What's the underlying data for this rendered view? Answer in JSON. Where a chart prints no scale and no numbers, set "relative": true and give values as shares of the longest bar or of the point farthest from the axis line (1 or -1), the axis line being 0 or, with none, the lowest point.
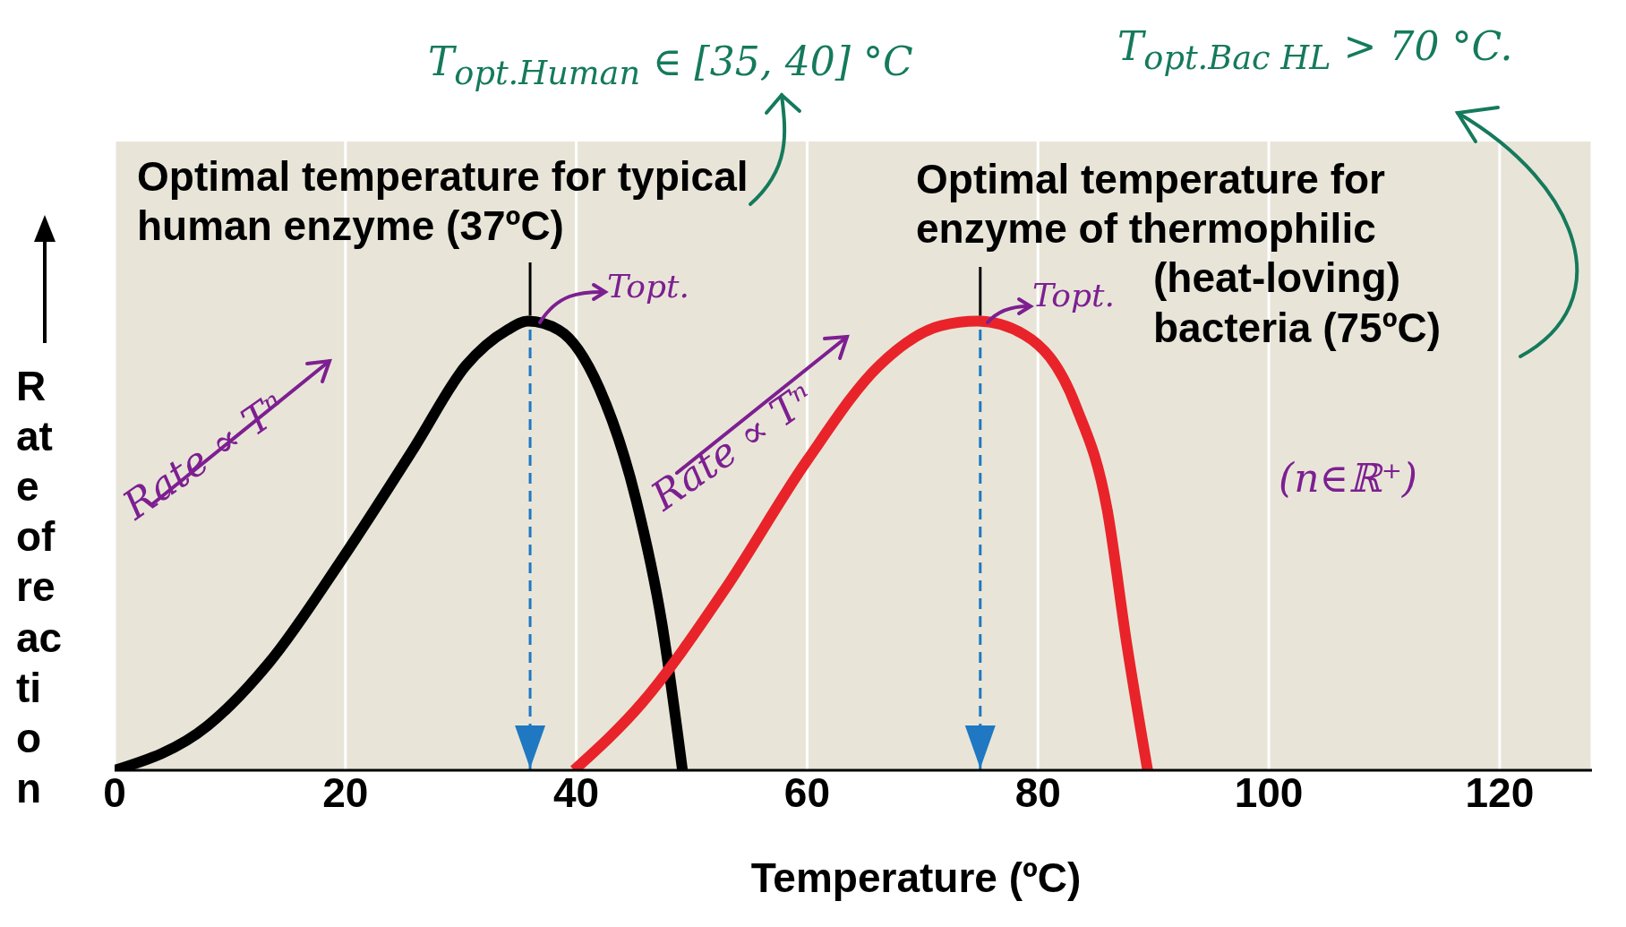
{
  "chart_data": {
    "type": "line",
    "relative": true,
    "xlabel": "Temperature (ºC)",
    "ylabel": "Rate of reaction",
    "xlim": [
      0,
      128
    ],
    "xticks": [
      0,
      20,
      40,
      60,
      80,
      100,
      120
    ],
    "grid": "x",
    "marker": "none",
    "line_style": "solid",
    "series": [
      {
        "color": "#000000",
        "x": [
          0,
          8.1,
          13.4,
          19.7,
          26,
          30.4,
          34,
          35.8,
          38.5,
          42,
          45.2,
          47.4,
          49.2
        ],
        "values": [
          0,
          0.1,
          0.24,
          0.47,
          0.72,
          0.9,
          0.98,
          1,
          0.98,
          0.85,
          0.6,
          0.33,
          0
        ]
      },
      {
        "color": "#e8242a",
        "x": [
          39.8,
          45.7,
          52.8,
          60,
          66.2,
          71.6,
          74.8,
          78.8,
          83.3,
          86,
          87.7,
          89.5
        ],
        "values": [
          0,
          0.15,
          0.4,
          0.69,
          0.9,
          0.99,
          1,
          0.97,
          0.81,
          0.58,
          0.28,
          0
        ]
      }
    ],
    "ref_lines": [
      {
        "axis": "x",
        "value": 36,
        "color": "#1f78c1",
        "line_style": "dashed"
      },
      {
        "axis": "x",
        "value": 75,
        "color": "#1f78c1",
        "line_style": "dashed"
      }
    ],
    "annotations": [
      {
        "text": "Optimal temperature for typical human enzyme (37ºC)",
        "x": 36,
        "y": 1
      },
      {
        "text": "Optimal temperature for enzyme of thermophilic (heat-loving) bacteria (75ºC)",
        "x": 75,
        "y": 1
      },
      "T$_{opt.Human}$ ∈ [35, 40] °C",
      "T$_{opt.Bac HL}$ > 70 °C.",
      "Topt.",
      "Topt.",
      "Rate ∝ Tⁿ",
      "Rate ∝ Tⁿ",
      "(n∈ℝ⁺)"
    ]
  }
}
